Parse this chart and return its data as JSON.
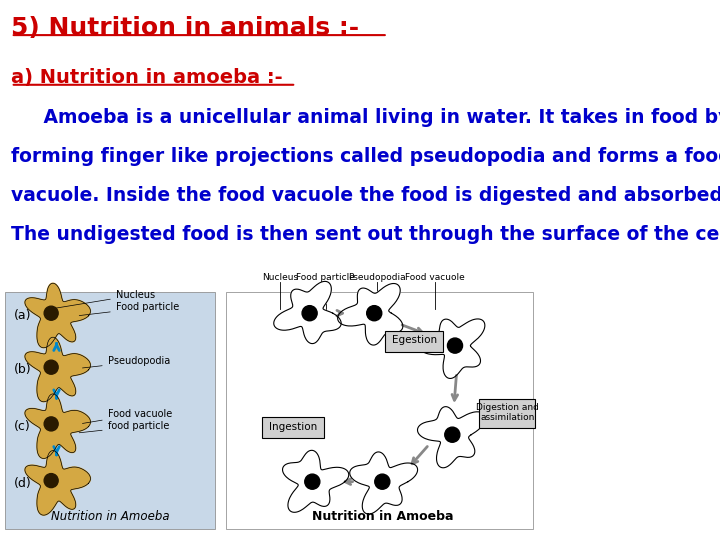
{
  "title": "5) Nutrition in animals :-",
  "subtitle": "a) Nutrition in amoeba :-",
  "paragraph_lines": [
    "     Amoeba is a unicellular animal living in water. It takes in food by",
    "forming finger like projections called pseudopodia and forms a food",
    "vacuole. Inside the food vacuole the food is digested and absorbed.",
    "The undigested food is then sent out through the surface of the cell."
  ],
  "title_color": "#cc0000",
  "subtitle_color": "#cc0000",
  "text_color": "#0000cc",
  "bg_color": "#ffffff",
  "title_fontsize": 18,
  "subtitle_fontsize": 14,
  "para_fontsize": 13.5,
  "left_bg_color": "#c8d8e8",
  "amoeba_color": "#d4a843",
  "nucleus_color": "#2a1a00",
  "arrow_blue": "#0088cc",
  "arrow_gray": "#888888"
}
